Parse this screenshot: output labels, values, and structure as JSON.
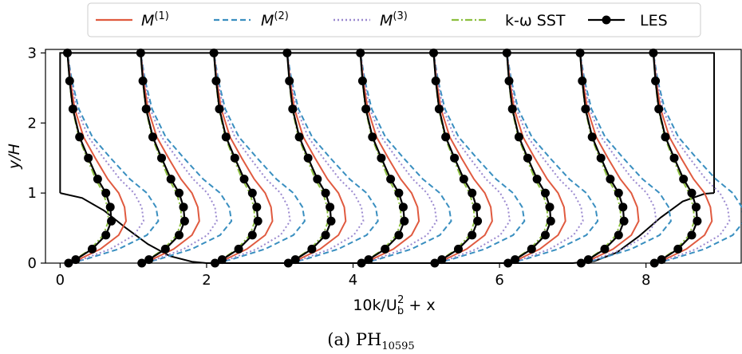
{
  "chart_data": {
    "type": "line",
    "xlabel": "10k/U_b^2 + x",
    "xlabel_parts": {
      "main": "10k/U",
      "sub": "b",
      "sup": "2",
      "rest": " + x"
    },
    "ylabel": "y/H",
    "xlim": [
      -0.2,
      9.3
    ],
    "ylim": [
      0,
      3.05
    ],
    "xticks": [
      "0",
      "2",
      "4",
      "6",
      "8"
    ],
    "yticks": [
      "0",
      "1",
      "2",
      "3"
    ],
    "caption": {
      "prefix": "(a) PH",
      "sub": "10595"
    },
    "legend": {
      "placement": "top",
      "entries": [
        {
          "key": "m1",
          "base": "M",
          "sup": "(1)",
          "color": "#e05a3f",
          "dash": "solid"
        },
        {
          "key": "m2",
          "base": "M",
          "sup": "(2)",
          "color": "#3a8fc0",
          "dash": "dashed"
        },
        {
          "key": "m3",
          "base": "M",
          "sup": "(3)",
          "color": "#9b89cf",
          "dash": "dotted"
        },
        {
          "key": "sst",
          "label": "k-ω SST",
          "color": "#8cbf3f",
          "dash": "dashdot"
        },
        {
          "key": "les",
          "label": "LES",
          "color": "#000000",
          "dash": "solid-markers"
        }
      ]
    },
    "stations": [
      0,
      1,
      2,
      3,
      4,
      5,
      6,
      7,
      8
    ],
    "amplitude_scale": {
      "m1": 1.0,
      "m2": 1.55,
      "m3": 1.3,
      "sst": 0.7,
      "les": 0.75
    },
    "profile_shape": {
      "y": [
        0.0,
        0.05,
        0.2,
        0.4,
        0.6,
        0.8,
        1.0,
        1.2,
        1.5,
        1.8,
        2.2,
        2.6,
        3.0
      ],
      "amp": [
        0.02,
        0.15,
        0.45,
        0.7,
        0.8,
        0.78,
        0.7,
        0.55,
        0.38,
        0.22,
        0.1,
        0.04,
        0.0
      ]
    },
    "hill_wall": {
      "x": [
        0.0,
        0.3,
        0.6,
        0.9,
        1.2,
        1.5,
        1.8,
        2.0,
        7.0,
        7.3,
        7.6,
        7.9,
        8.2,
        8.5,
        8.8,
        8.93
      ],
      "y": [
        1.0,
        0.93,
        0.75,
        0.5,
        0.27,
        0.1,
        0.02,
        0.0,
        0.0,
        0.03,
        0.15,
        0.38,
        0.65,
        0.88,
        0.99,
        1.0
      ]
    }
  }
}
